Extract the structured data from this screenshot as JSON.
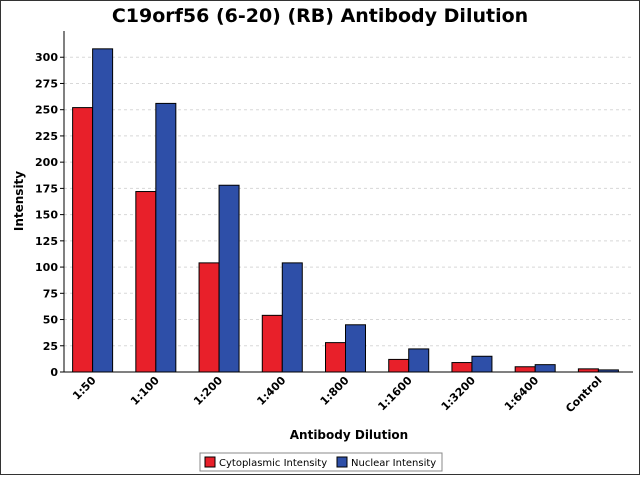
{
  "chart_data": {
    "type": "bar",
    "title": "C19orf56 (6-20) (RB) Antibody Dilution",
    "xlabel": "Antibody Dilution",
    "ylabel": "Intensity",
    "ylim": [
      0,
      325
    ],
    "yticks": [
      0,
      25,
      50,
      75,
      100,
      125,
      150,
      175,
      200,
      225,
      250,
      275,
      300
    ],
    "grid": true,
    "legend_position": "bottom-center",
    "categories": [
      "1:50",
      "1:100",
      "1:200",
      "1:400",
      "1:800",
      "1:1600",
      "1:3200",
      "1:6400",
      "Control"
    ],
    "series": [
      {
        "name": "Cytoplasmic Intensity",
        "color": "#e8202a",
        "values": [
          252,
          172,
          104,
          54,
          28,
          12,
          9,
          5,
          3
        ]
      },
      {
        "name": "Nuclear Intensity",
        "color": "#2e4fa8",
        "values": [
          308,
          256,
          178,
          104,
          45,
          22,
          15,
          7,
          2
        ]
      }
    ]
  }
}
